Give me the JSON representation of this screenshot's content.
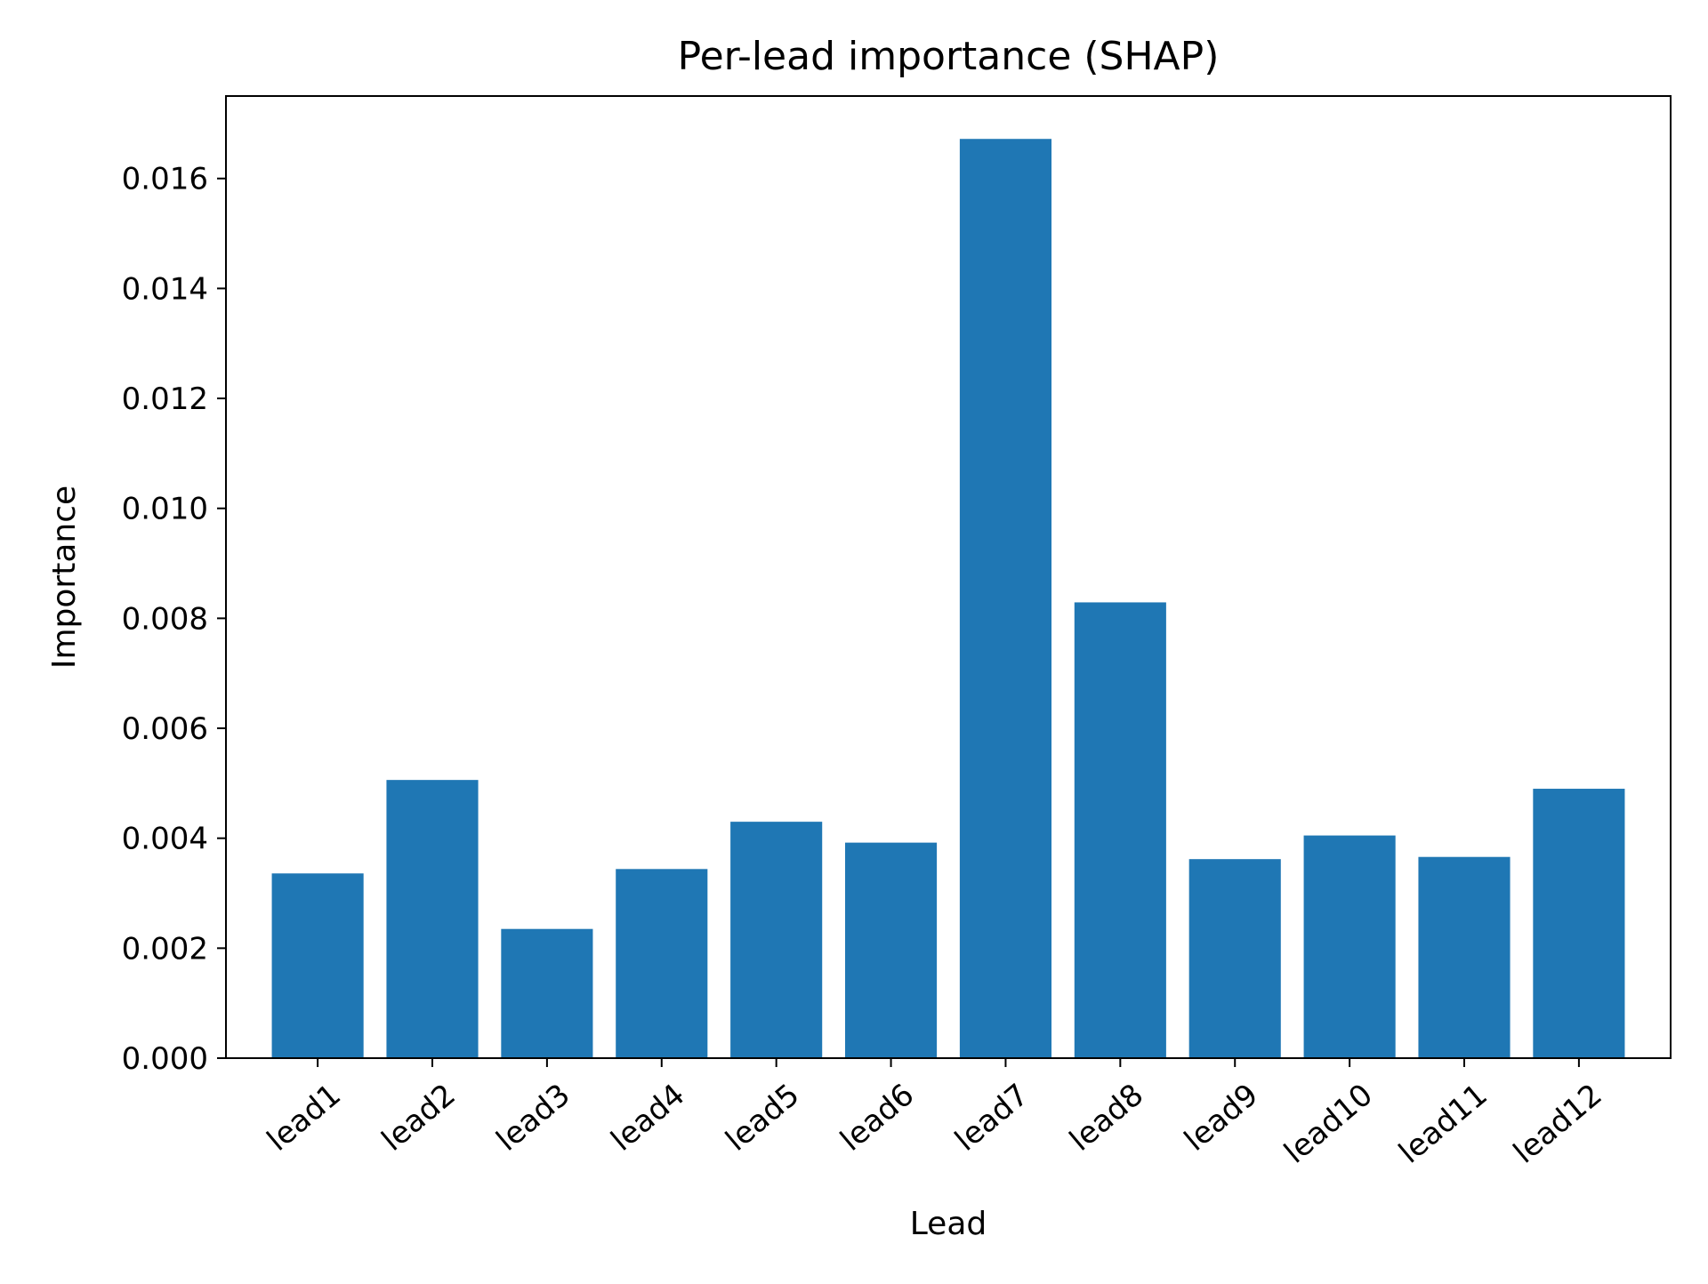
{
  "chart_data": {
    "type": "bar",
    "title": "Per-lead importance (SHAP)",
    "xlabel": "Lead",
    "ylabel": "Importance",
    "categories": [
      "lead1",
      "lead2",
      "lead3",
      "lead4",
      "lead5",
      "lead6",
      "lead7",
      "lead8",
      "lead9",
      "lead10",
      "lead11",
      "lead12"
    ],
    "values": [
      0.00336,
      0.00506,
      0.00235,
      0.00344,
      0.0043,
      0.00392,
      0.01672,
      0.00829,
      0.00362,
      0.00405,
      0.00366,
      0.0049
    ],
    "ylim": [
      0,
      0.0175
    ],
    "yticks": [
      0,
      0.002,
      0.004,
      0.006,
      0.008,
      0.01,
      0.012,
      0.014,
      0.016
    ],
    "ytick_labels": [
      "0.000",
      "0.002",
      "0.004",
      "0.006",
      "0.008",
      "0.010",
      "0.012",
      "0.014",
      "0.016"
    ],
    "bar_color": "#1f77b4",
    "grid": false,
    "legend": false
  }
}
